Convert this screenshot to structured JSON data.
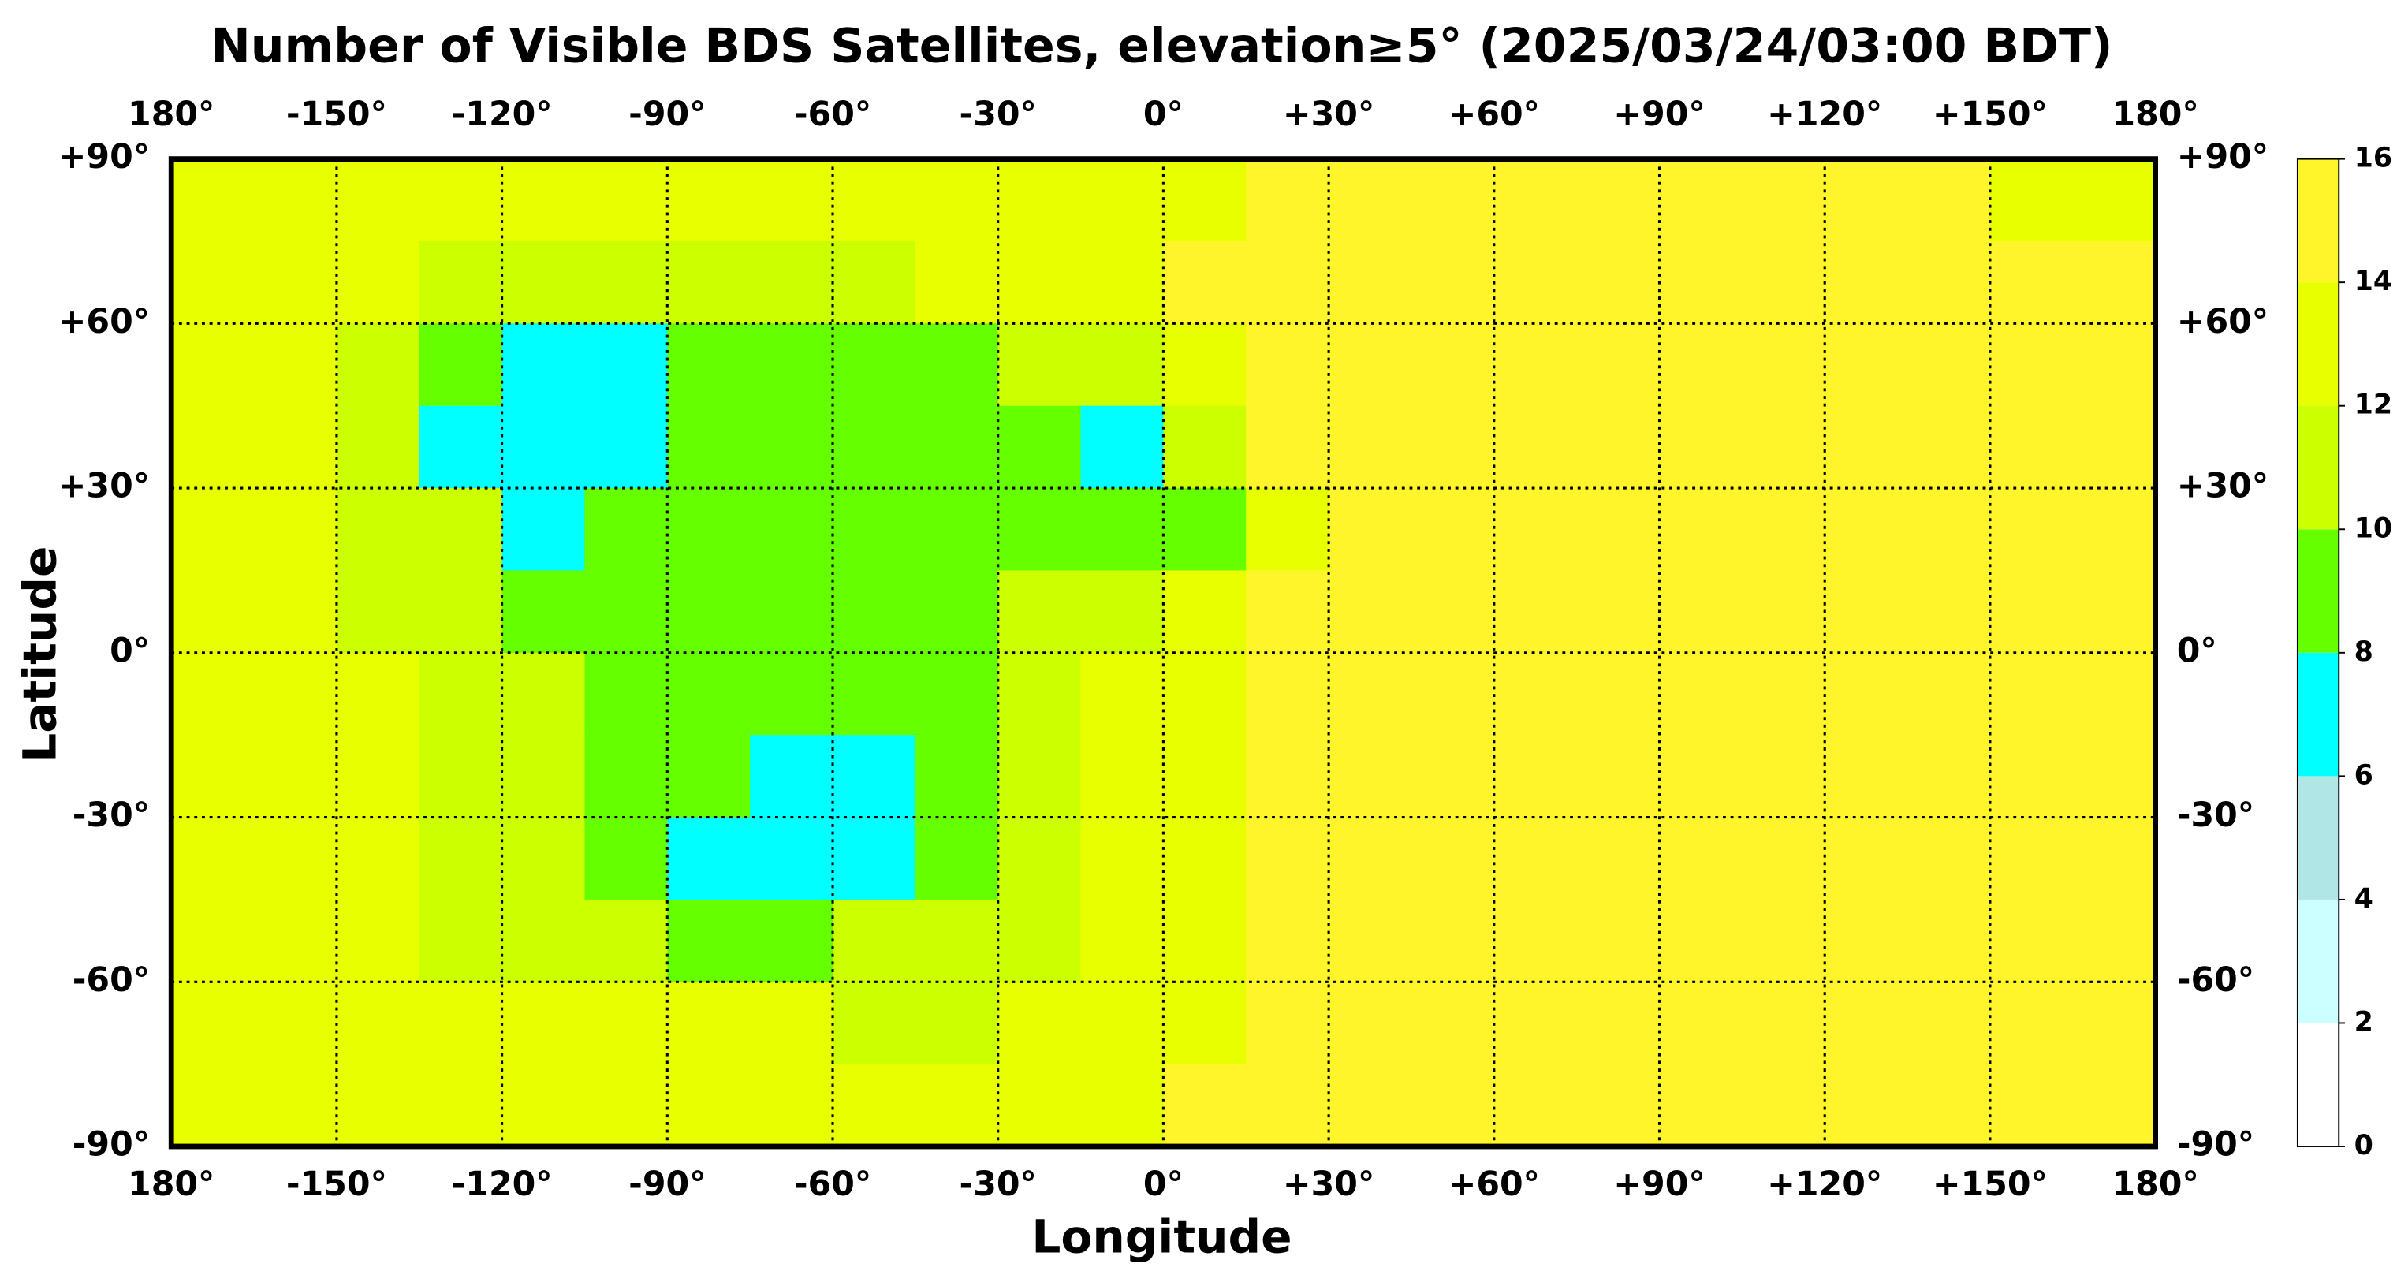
{
  "chart_data": {
    "type": "heatmap",
    "title": "Number of Visible BDS Satellites, elevation≥5° (2025/03/24/03:00 BDT)",
    "xlabel": "Longitude",
    "ylabel": "Latitude",
    "xlim": [
      -180,
      180
    ],
    "ylim": [
      -90,
      90
    ],
    "xticks": [
      {
        "value": -180,
        "label": "180°"
      },
      {
        "value": -150,
        "label": "-150°"
      },
      {
        "value": -120,
        "label": "-120°"
      },
      {
        "value": -90,
        "label": "-90°"
      },
      {
        "value": -60,
        "label": "-60°"
      },
      {
        "value": -30,
        "label": "-30°"
      },
      {
        "value": 0,
        "label": "0°"
      },
      {
        "value": 30,
        "label": "+30°"
      },
      {
        "value": 60,
        "label": "+60°"
      },
      {
        "value": 90,
        "label": "+90°"
      },
      {
        "value": 120,
        "label": "+120°"
      },
      {
        "value": 150,
        "label": "+150°"
      },
      {
        "value": 180,
        "label": "180°"
      }
    ],
    "yticks": [
      {
        "value": 90,
        "label": "+90°"
      },
      {
        "value": 60,
        "label": "+60°"
      },
      {
        "value": 30,
        "label": "+30°"
      },
      {
        "value": 0,
        "label": "0°"
      },
      {
        "value": -30,
        "label": "-30°"
      },
      {
        "value": -60,
        "label": "-60°"
      },
      {
        "value": -90,
        "label": "-90°"
      }
    ],
    "grid": true,
    "xbins": [
      -180,
      -165,
      -150,
      -135,
      -120,
      -105,
      -90,
      -75,
      -60,
      -45,
      -30,
      -15,
      0,
      15,
      30,
      45,
      60,
      75,
      90,
      105,
      120,
      135,
      150,
      165,
      180
    ],
    "ybins": [
      90,
      75,
      60,
      45,
      30,
      15,
      0,
      -15,
      -30,
      -45,
      -60,
      -75,
      -90
    ],
    "values": [
      [
        13,
        13,
        13,
        13,
        13,
        13,
        13,
        13,
        13,
        13,
        13,
        13,
        13,
        15,
        15,
        15,
        15,
        15,
        15,
        15,
        15,
        15,
        13,
        13
      ],
      [
        13,
        13,
        13,
        11,
        11,
        11,
        11,
        11,
        11,
        13,
        13,
        13,
        15,
        15,
        15,
        15,
        15,
        15,
        15,
        15,
        15,
        15,
        15,
        15
      ],
      [
        13,
        13,
        11,
        9,
        7,
        7,
        9,
        9,
        9,
        9,
        11,
        11,
        13,
        15,
        15,
        15,
        15,
        15,
        15,
        15,
        15,
        15,
        15,
        15
      ],
      [
        13,
        13,
        11,
        7,
        7,
        7,
        9,
        9,
        9,
        9,
        9,
        7,
        11,
        15,
        15,
        15,
        15,
        15,
        15,
        15,
        15,
        15,
        15,
        15
      ],
      [
        13,
        13,
        11,
        11,
        7,
        9,
        9,
        9,
        9,
        9,
        9,
        9,
        9,
        13,
        15,
        15,
        15,
        15,
        15,
        15,
        15,
        15,
        15,
        15
      ],
      [
        13,
        13,
        11,
        11,
        9,
        9,
        9,
        9,
        9,
        9,
        11,
        11,
        13,
        15,
        15,
        15,
        15,
        15,
        15,
        15,
        15,
        15,
        15,
        15
      ],
      [
        13,
        13,
        13,
        11,
        11,
        9,
        9,
        9,
        9,
        9,
        11,
        13,
        13,
        15,
        15,
        15,
        15,
        15,
        15,
        15,
        15,
        15,
        15,
        15
      ],
      [
        13,
        13,
        13,
        11,
        11,
        9,
        9,
        7,
        7,
        9,
        11,
        13,
        13,
        15,
        15,
        15,
        15,
        15,
        15,
        15,
        15,
        15,
        15,
        15
      ],
      [
        13,
        13,
        13,
        11,
        11,
        9,
        7,
        7,
        7,
        9,
        11,
        13,
        13,
        15,
        15,
        15,
        15,
        15,
        15,
        15,
        15,
        15,
        15,
        15
      ],
      [
        13,
        13,
        13,
        11,
        11,
        11,
        9,
        9,
        11,
        11,
        11,
        13,
        13,
        15,
        15,
        15,
        15,
        15,
        15,
        15,
        15,
        15,
        15,
        15
      ],
      [
        13,
        13,
        13,
        13,
        13,
        13,
        13,
        13,
        11,
        11,
        13,
        13,
        13,
        15,
        15,
        15,
        15,
        15,
        15,
        15,
        15,
        15,
        15,
        15
      ],
      [
        13,
        13,
        13,
        13,
        13,
        13,
        13,
        13,
        13,
        13,
        13,
        13,
        15,
        15,
        15,
        15,
        15,
        15,
        15,
        15,
        15,
        15,
        15,
        15
      ]
    ],
    "colorbar": {
      "ticks": [
        0,
        2,
        4,
        6,
        8,
        10,
        12,
        14,
        16
      ],
      "colors": [
        "#ffffff",
        "#ccffff",
        "#b0e6e6",
        "#00ffff",
        "#66ff00",
        "#ccff00",
        "#e8ff00",
        "#fff52a"
      ]
    }
  }
}
